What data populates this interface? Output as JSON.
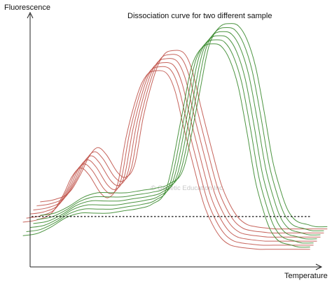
{
  "chart_data": {
    "type": "line",
    "title": "Dissociation curve for two different sample",
    "ylabel": "Fluorescence",
    "xlabel": "Temperature",
    "watermark": "© Genetic Education Inc.",
    "xlim": [
      0,
      100
    ],
    "ylim": [
      0,
      100
    ],
    "threshold": 18,
    "colors": {
      "red": "#c0534a",
      "green": "#3a8a2e",
      "threshold": "#111111",
      "axis": "#222222"
    },
    "series": [
      {
        "color": "red",
        "replicates": 6,
        "spread": 2.0,
        "x": [
          0,
          5,
          10,
          14,
          17,
          20,
          23,
          27,
          30,
          33,
          36,
          40,
          43,
          46,
          50,
          53,
          56,
          60,
          63,
          66,
          69,
          72,
          75,
          78,
          82,
          86,
          90,
          95,
          100
        ],
        "y": [
          20,
          21,
          24,
          32,
          40,
          44,
          41,
          33,
          31,
          37,
          58,
          77,
          85,
          87,
          86,
          78,
          62,
          42,
          28,
          19,
          13,
          10,
          9,
          8.5,
          8,
          8,
          8,
          8,
          8
        ]
      },
      {
        "color": "green",
        "replicates": 6,
        "spread": 2.0,
        "x": [
          0,
          5,
          10,
          15,
          20,
          25,
          30,
          35,
          40,
          45,
          50,
          55,
          58,
          60,
          63,
          66,
          69,
          72,
          75,
          78,
          81,
          84,
          86,
          88,
          90,
          93,
          96,
          100
        ],
        "y": [
          14,
          15,
          18,
          22,
          24,
          24,
          24,
          25,
          26,
          28,
          35,
          65,
          85,
          93,
          98,
          99,
          98,
          92,
          80,
          60,
          38,
          24,
          17,
          13,
          11,
          10,
          9,
          9
        ]
      }
    ]
  }
}
